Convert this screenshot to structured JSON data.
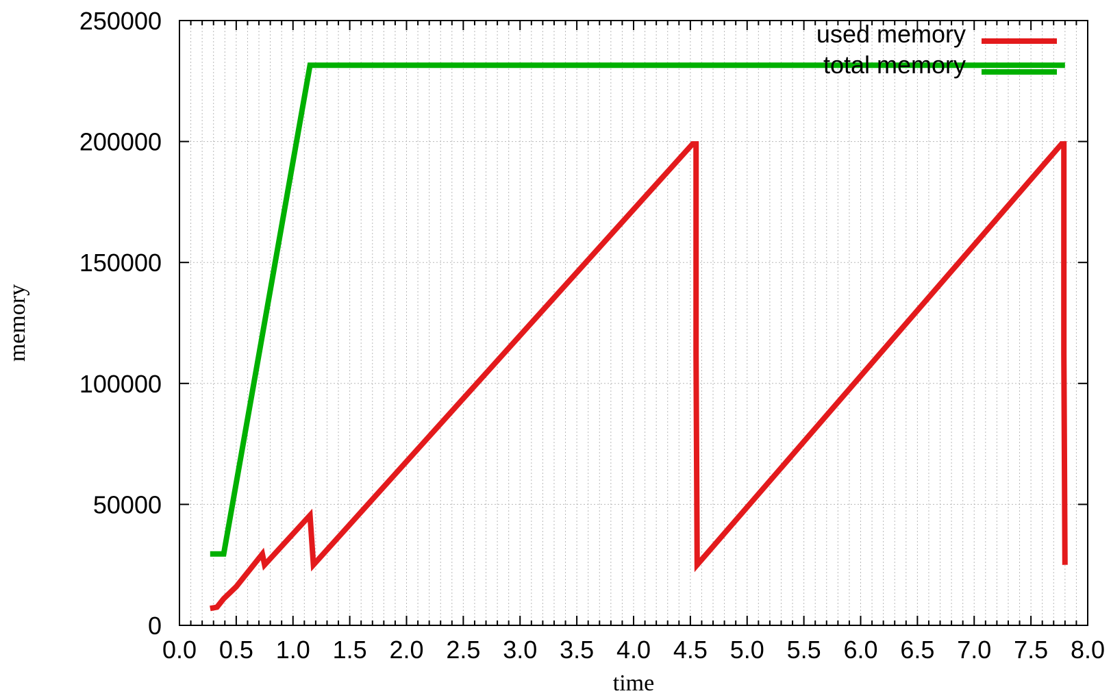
{
  "chart_data": {
    "type": "line",
    "title": "",
    "xlabel": "time",
    "ylabel": "memory",
    "xlim": [
      0.0,
      8.0
    ],
    "ylim": [
      0,
      250000
    ],
    "x_ticks": [
      "0.0",
      "0.5",
      "1.0",
      "1.5",
      "2.0",
      "2.5",
      "3.0",
      "3.5",
      "4.0",
      "4.5",
      "5.0",
      "5.5",
      "6.0",
      "6.5",
      "7.0",
      "7.5",
      "8.0"
    ],
    "x_tick_values": [
      0.0,
      0.5,
      1.0,
      1.5,
      2.0,
      2.5,
      3.0,
      3.5,
      4.0,
      4.5,
      5.0,
      5.5,
      6.0,
      6.5,
      7.0,
      7.5,
      8.0
    ],
    "y_ticks": [
      "0",
      "50000",
      "100000",
      "150000",
      "200000",
      "250000"
    ],
    "y_tick_values": [
      0,
      50000,
      100000,
      150000,
      200000,
      250000
    ],
    "grid": true,
    "legend_position": "top-right",
    "series": [
      {
        "name": "used memory",
        "color": "#e31a1c",
        "points": [
          [
            0.27,
            7000
          ],
          [
            0.33,
            7500
          ],
          [
            0.39,
            11000
          ],
          [
            0.5,
            16000
          ],
          [
            0.73,
            29500
          ],
          [
            0.75,
            25000
          ],
          [
            1.15,
            45500
          ],
          [
            1.18,
            25000
          ],
          [
            4.52,
            199000
          ],
          [
            4.55,
            199000
          ],
          [
            4.55,
            112000
          ],
          [
            4.56,
            25000
          ],
          [
            7.77,
            199000
          ],
          [
            7.79,
            199000
          ],
          [
            7.79,
            112000
          ],
          [
            7.8,
            25000
          ]
        ]
      },
      {
        "name": "total memory",
        "color": "#00b000",
        "points": [
          [
            0.27,
            29500
          ],
          [
            0.39,
            29500
          ],
          [
            1.15,
            231500
          ],
          [
            7.8,
            231500
          ]
        ]
      }
    ]
  }
}
